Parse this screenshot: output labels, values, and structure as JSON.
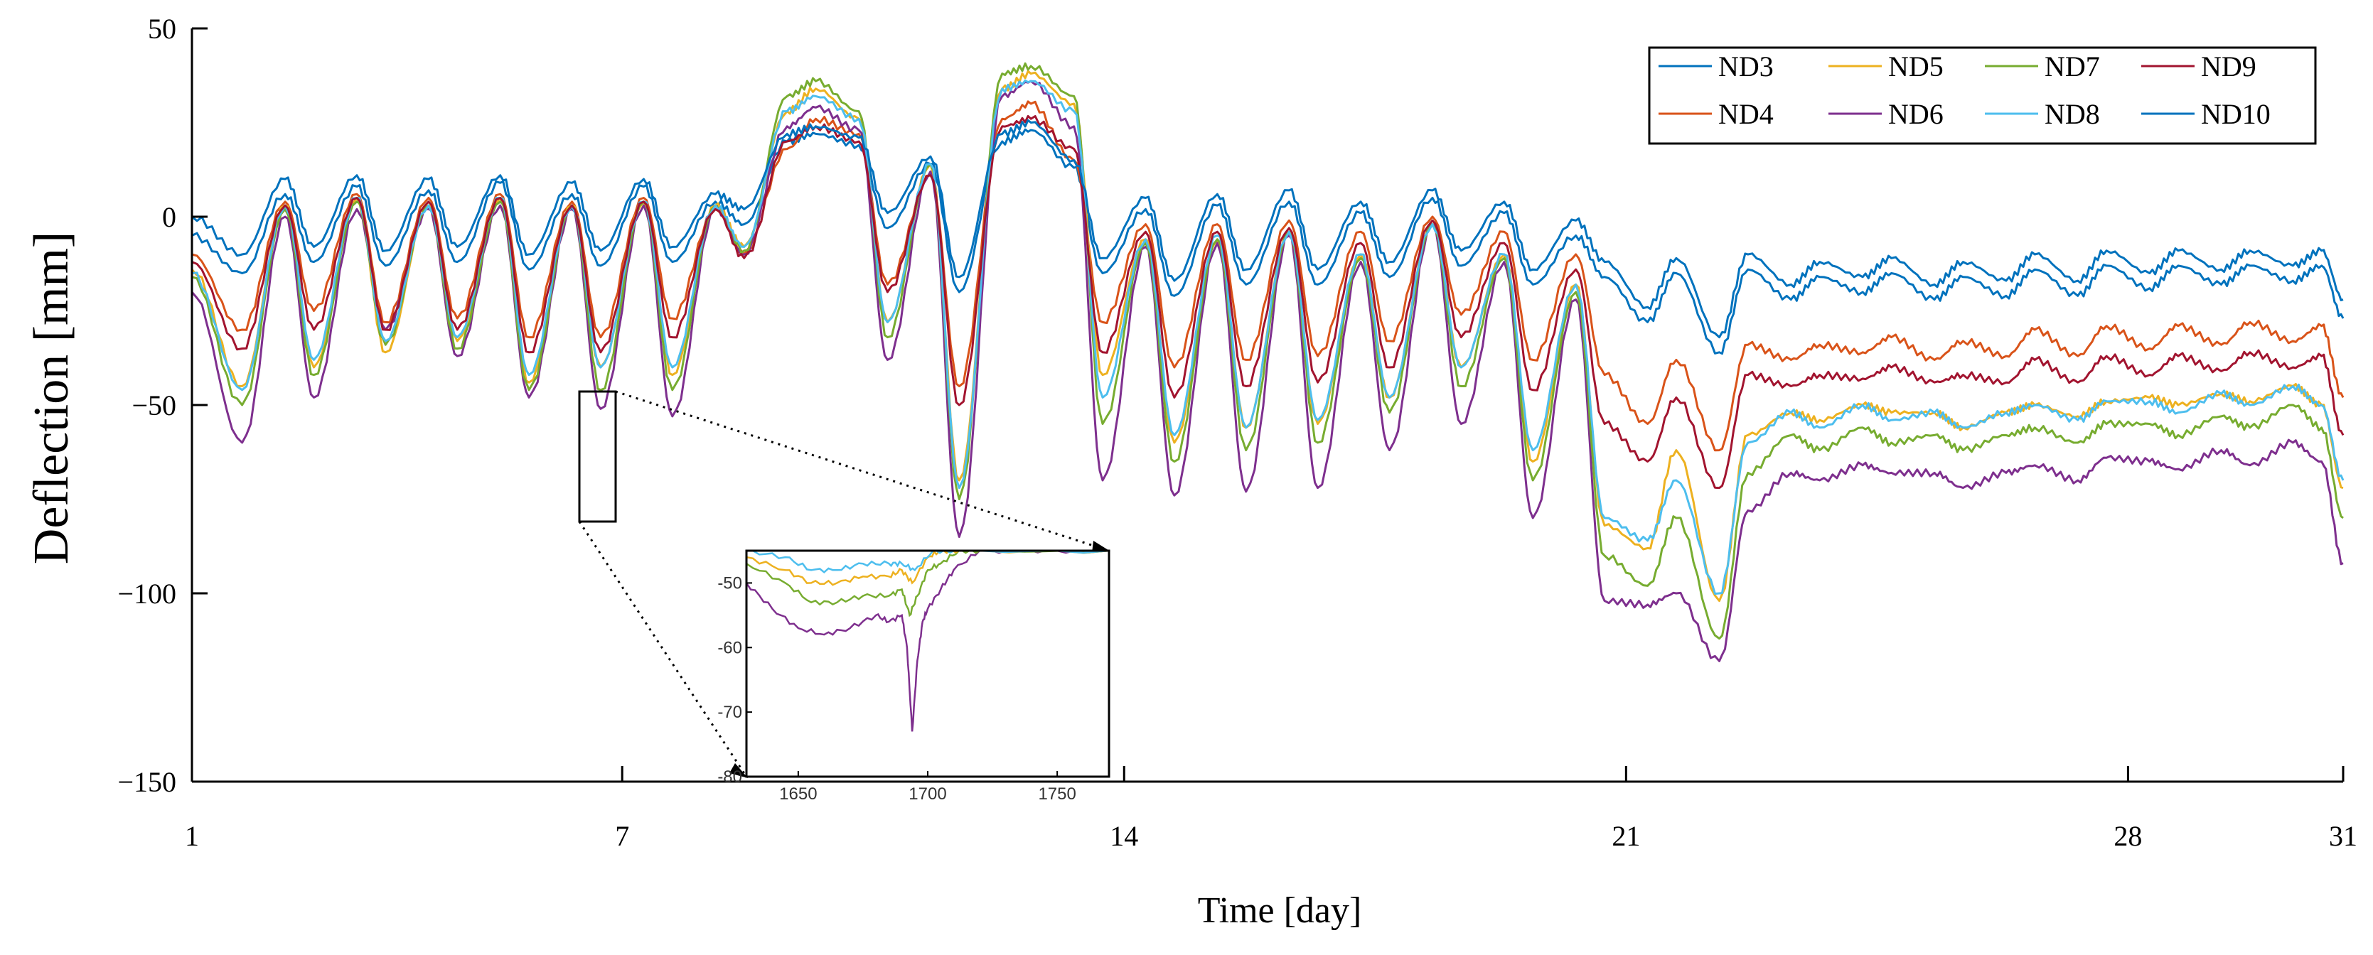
{
  "chart_data": {
    "type": "line",
    "xlabel": "Time [day]",
    "ylabel": "Deflection [mm]",
    "xlim": [
      1,
      31
    ],
    "ylim": [
      -150,
      50
    ],
    "x_ticks": [
      1,
      7,
      14,
      21,
      28,
      31
    ],
    "y_ticks": [
      50,
      0,
      -50,
      -100,
      -150
    ],
    "y_tick_labels": [
      "50",
      "0",
      "−50",
      "−100",
      "−150"
    ],
    "legend_position": "top-right",
    "sample_times": [
      1.0,
      1.7,
      2.3,
      2.7,
      3.3,
      3.7,
      4.3,
      4.7,
      5.3,
      5.7,
      6.3,
      6.7,
      7.3,
      7.7,
      8.3,
      8.7,
      9.3,
      9.7,
      10.3,
      10.7,
      11.3,
      11.7,
      12.3,
      12.7,
      13.3,
      13.7,
      14.3,
      14.7,
      15.3,
      15.7,
      16.3,
      16.7,
      17.3,
      17.7,
      18.3,
      18.7,
      19.3,
      19.7,
      20.3,
      20.7,
      21.3,
      21.7,
      22.3,
      22.7,
      23.3,
      23.7,
      24.3,
      24.7,
      25.3,
      25.7,
      26.3,
      26.7,
      27.3,
      27.7,
      28.3,
      28.7,
      29.3,
      29.7,
      30.3,
      30.7,
      31.0
    ],
    "series": [
      {
        "name": "ND3",
        "color": "#0072BD",
        "values": [
          -5,
          -15,
          6,
          -12,
          8,
          -13,
          7,
          -12,
          9,
          -14,
          6,
          -13,
          8,
          -12,
          4,
          -2,
          20,
          22,
          19,
          -3,
          14,
          -20,
          20,
          23,
          13,
          -15,
          2,
          -21,
          3,
          -18,
          4,
          -18,
          1,
          -16,
          5,
          -13,
          1,
          -18,
          -5,
          -16,
          -28,
          -15,
          -36,
          -14,
          -22,
          -16,
          -20,
          -15,
          -22,
          -16,
          -21,
          -14,
          -21,
          -13,
          -19,
          -13,
          -18,
          -13,
          -17,
          -13,
          -27
        ]
      },
      {
        "name": "ND4",
        "color": "#D95319",
        "values": [
          -10,
          -30,
          4,
          -25,
          6,
          -28,
          5,
          -27,
          6,
          -32,
          4,
          -32,
          5,
          -27,
          2,
          -10,
          18,
          26,
          22,
          -18,
          11,
          -45,
          26,
          30,
          15,
          -28,
          -2,
          -40,
          -2,
          -38,
          -1,
          -37,
          -4,
          -33,
          0,
          -26,
          -4,
          -38,
          -10,
          -42,
          -55,
          -38,
          -62,
          -34,
          -38,
          -34,
          -36,
          -32,
          -38,
          -33,
          -37,
          -30,
          -37,
          -29,
          -35,
          -29,
          -34,
          -28,
          -33,
          -29,
          -48
        ]
      },
      {
        "name": "ND5",
        "color": "#EDB120",
        "values": [
          -14,
          -45,
          3,
          -40,
          5,
          -36,
          3,
          -33,
          5,
          -44,
          3,
          -40,
          4,
          -42,
          3,
          -8,
          28,
          34,
          26,
          -28,
          14,
          -70,
          34,
          38,
          30,
          -42,
          -6,
          -60,
          -6,
          -56,
          -4,
          -55,
          -10,
          -48,
          -2,
          -40,
          -10,
          -65,
          -18,
          -82,
          -88,
          -62,
          -102,
          -58,
          -52,
          -54,
          -50,
          -52,
          -52,
          -56,
          -52,
          -50,
          -53,
          -49,
          -48,
          -50,
          -47,
          -49,
          -45,
          -50,
          -72
        ]
      },
      {
        "name": "ND6",
        "color": "#7E2F8E",
        "values": [
          -20,
          -60,
          0,
          -48,
          2,
          -30,
          2,
          -37,
          3,
          -48,
          2,
          -51,
          3,
          -53,
          2,
          -10,
          24,
          29,
          23,
          -38,
          12,
          -85,
          32,
          36,
          24,
          -70,
          -8,
          -74,
          -7,
          -73,
          -5,
          -72,
          -12,
          -62,
          -2,
          -55,
          -12,
          -80,
          -22,
          -102,
          -103,
          -100,
          -118,
          -78,
          -68,
          -70,
          -66,
          -68,
          -68,
          -72,
          -68,
          -66,
          -70,
          -64,
          -65,
          -67,
          -62,
          -66,
          -60,
          -65,
          -92
        ]
      },
      {
        "name": "ND7",
        "color": "#77AC30",
        "values": [
          -16,
          -50,
          2,
          -42,
          4,
          -34,
          3,
          -35,
          4,
          -46,
          3,
          -46,
          4,
          -46,
          3,
          -9,
          32,
          36,
          28,
          -32,
          14,
          -75,
          38,
          40,
          32,
          -55,
          -7,
          -65,
          -6,
          -62,
          -4,
          -60,
          -11,
          -52,
          -2,
          -45,
          -11,
          -70,
          -20,
          -90,
          -98,
          -80,
          -112,
          -68,
          -58,
          -62,
          -56,
          -60,
          -58,
          -62,
          -58,
          -56,
          -60,
          -55,
          -55,
          -58,
          -53,
          -56,
          -50,
          -56,
          -80
        ]
      },
      {
        "name": "ND8",
        "color": "#4DBEEE",
        "values": [
          -15,
          -46,
          3,
          -38,
          5,
          -33,
          3,
          -32,
          5,
          -42,
          3,
          -40,
          4,
          -40,
          3,
          -8,
          28,
          32,
          26,
          -28,
          14,
          -72,
          34,
          36,
          28,
          -48,
          -6,
          -58,
          -5,
          -56,
          -4,
          -54,
          -10,
          -48,
          -2,
          -40,
          -10,
          -62,
          -18,
          -80,
          -86,
          -70,
          -100,
          -60,
          -52,
          -56,
          -50,
          -54,
          -52,
          -56,
          -52,
          -50,
          -54,
          -49,
          -49,
          -52,
          -47,
          -50,
          -45,
          -50,
          -70
        ]
      },
      {
        "name": "ND9",
        "color": "#A2142F",
        "values": [
          -12,
          -35,
          3,
          -30,
          5,
          -30,
          4,
          -30,
          5,
          -36,
          3,
          -36,
          4,
          -32,
          2,
          -11,
          20,
          24,
          20,
          -20,
          11,
          -50,
          24,
          26,
          18,
          -36,
          -4,
          -48,
          -4,
          -45,
          -3,
          -44,
          -7,
          -40,
          -1,
          -32,
          -7,
          -46,
          -14,
          -55,
          -65,
          -48,
          -72,
          -42,
          -45,
          -42,
          -43,
          -40,
          -44,
          -42,
          -44,
          -38,
          -44,
          -37,
          -42,
          -37,
          -41,
          -36,
          -40,
          -37,
          -58
        ]
      },
      {
        "name": "ND10",
        "color": "#0072BD",
        "values": [
          0,
          -10,
          10,
          -8,
          11,
          -9,
          10,
          -8,
          11,
          -10,
          9,
          -9,
          10,
          -8,
          6,
          2,
          22,
          24,
          21,
          1,
          16,
          -16,
          22,
          25,
          15,
          -11,
          5,
          -17,
          6,
          -14,
          7,
          -14,
          4,
          -12,
          7,
          -9,
          4,
          -14,
          -1,
          -12,
          -24,
          -11,
          -32,
          -10,
          -18,
          -12,
          -16,
          -11,
          -18,
          -12,
          -17,
          -10,
          -17,
          -9,
          -15,
          -9,
          -14,
          -9,
          -13,
          -9,
          -22
        ]
      }
    ],
    "inset": {
      "xlim": [
        1630,
        1770
      ],
      "ylim": [
        -80,
        -45
      ],
      "x_ticks": [
        1650,
        1700,
        1750
      ],
      "y_ticks": [
        -50,
        -60,
        -70,
        -80
      ],
      "series": [
        {
          "name": "ND6",
          "color": "#7E2F8E",
          "x": [
            1630,
            1640,
            1650,
            1660,
            1670,
            1680,
            1685,
            1690,
            1692,
            1694,
            1696,
            1698,
            1700,
            1705,
            1710,
            1720,
            1735,
            1750,
            1770
          ],
          "values": [
            -50,
            -54,
            -57,
            -58,
            -57,
            -55,
            -56,
            -55,
            -60,
            -73,
            -62,
            -56,
            -54,
            -51,
            -48,
            -45,
            -45,
            -45,
            -45
          ]
        },
        {
          "name": "ND7",
          "color": "#77AC30",
          "x": [
            1630,
            1645,
            1655,
            1665,
            1675,
            1685,
            1690,
            1693,
            1696,
            1700,
            1705,
            1712,
            1720,
            1770
          ],
          "values": [
            -47,
            -50,
            -53,
            -53,
            -52,
            -52,
            -51,
            -55,
            -52,
            -48,
            -47,
            -45,
            -45,
            -45
          ]
        },
        {
          "name": "ND5",
          "color": "#EDB120",
          "x": [
            1630,
            1645,
            1655,
            1665,
            1675,
            1685,
            1690,
            1694,
            1700,
            1705,
            1712,
            1770
          ],
          "values": [
            -46,
            -48,
            -50,
            -50,
            -49,
            -49,
            -48,
            -50,
            -46,
            -45,
            -45,
            -45
          ]
        },
        {
          "name": "ND8",
          "color": "#4DBEEE",
          "x": [
            1630,
            1645,
            1655,
            1665,
            1675,
            1685,
            1690,
            1695,
            1702,
            1710,
            1770
          ],
          "values": [
            -45,
            -46,
            -48,
            -48,
            -47,
            -47,
            -47,
            -48,
            -45,
            -45,
            -45
          ]
        }
      ]
    }
  }
}
